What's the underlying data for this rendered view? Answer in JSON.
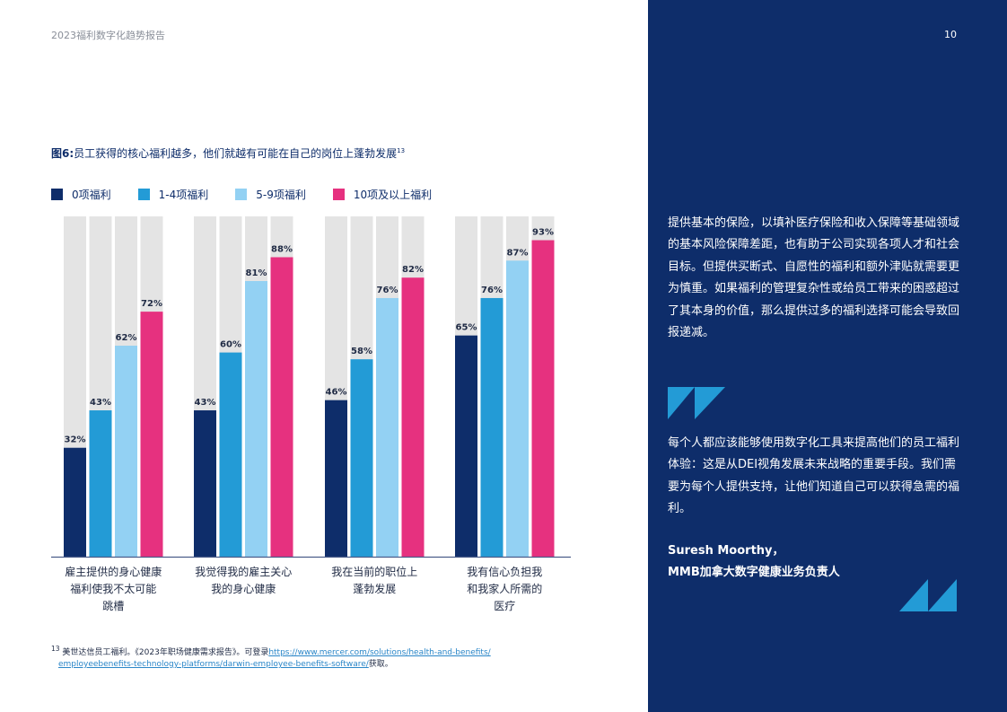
{
  "header": {
    "report_title": "2023福利数字化趋势报告",
    "page_number": "10"
  },
  "figure": {
    "label": "图6:",
    "title": "员工获得的核心福利越多，他们就越有可能在自己的岗位上蓬勃发展",
    "note_ref": "13"
  },
  "colors": {
    "series": [
      "#0e2d6a",
      "#239bd6",
      "#93d1f3",
      "#e6317f"
    ],
    "background_bar": "#e4e4e4",
    "panel": "#0e2d6a"
  },
  "chart_data": {
    "type": "bar",
    "categories": [
      "雇主提供的身心健康福利使我不太可能跳槽",
      "我觉得我的雇主关心我的身心健康",
      "我在当前的职位上蓬勃发展",
      "我有信心负担我和我家人所需的医疗"
    ],
    "category_lines": [
      [
        "雇主提供的身心健康",
        "福利使我不太可能",
        "跳槽"
      ],
      [
        "我觉得我的雇主关心",
        "我的身心健康"
      ],
      [
        "我在当前的职位上",
        "蓬勃发展"
      ],
      [
        "我有信心负担我",
        "和我家人所需的",
        "医疗"
      ]
    ],
    "series": [
      {
        "name": "0项福利",
        "values": [
          32,
          43,
          46,
          65
        ]
      },
      {
        "name": "1-4项福利",
        "values": [
          43,
          60,
          58,
          76
        ]
      },
      {
        "name": "5-9项福利",
        "values": [
          62,
          81,
          76,
          87
        ]
      },
      {
        "name": "10项及以上福利",
        "values": [
          72,
          88,
          82,
          93
        ]
      }
    ],
    "value_suffix": "%",
    "ylim": [
      0,
      100
    ],
    "title": "员工获得的核心福利越多，他们就越有可能在自己的岗位上蓬勃发展",
    "xlabel": "",
    "ylabel": "",
    "legend_position": "top-left",
    "grid": false
  },
  "footnote": {
    "number": "13",
    "text": "美世达信员工福利。《2023年职场健康需求报告》。可登录",
    "url_line1": "https://www.mercer.com/solutions/health-and-benefits/",
    "url_line2": "employeebenefits-technology-platforms/darwin-employee-benefits-software/",
    "suffix": "获取。"
  },
  "panel": {
    "paragraph1": "提供基本的保险，以填补医疗保险和收入保障等基础领域的基本风险保障差距，也有助于公司实现各项人才和社会目标。但提供买断式、自愿性的福利和额外津贴就需要更为慎重。如果福利的管理复杂性或给员工带来的困惑超过了其本身的价值，那么提供过多的福利选择可能会导致回报递减。",
    "quote": "每个人都应该能够使用数字化工具来提高他们的员工福利体验：这是从DEI视角发展未来战略的重要手段。我们需要为每个人提供支持，让他们知道自己可以获得急需的福利。",
    "author_name": "Suresh Moorthy，",
    "author_title": "MMB加拿大数字健康业务负责人"
  }
}
